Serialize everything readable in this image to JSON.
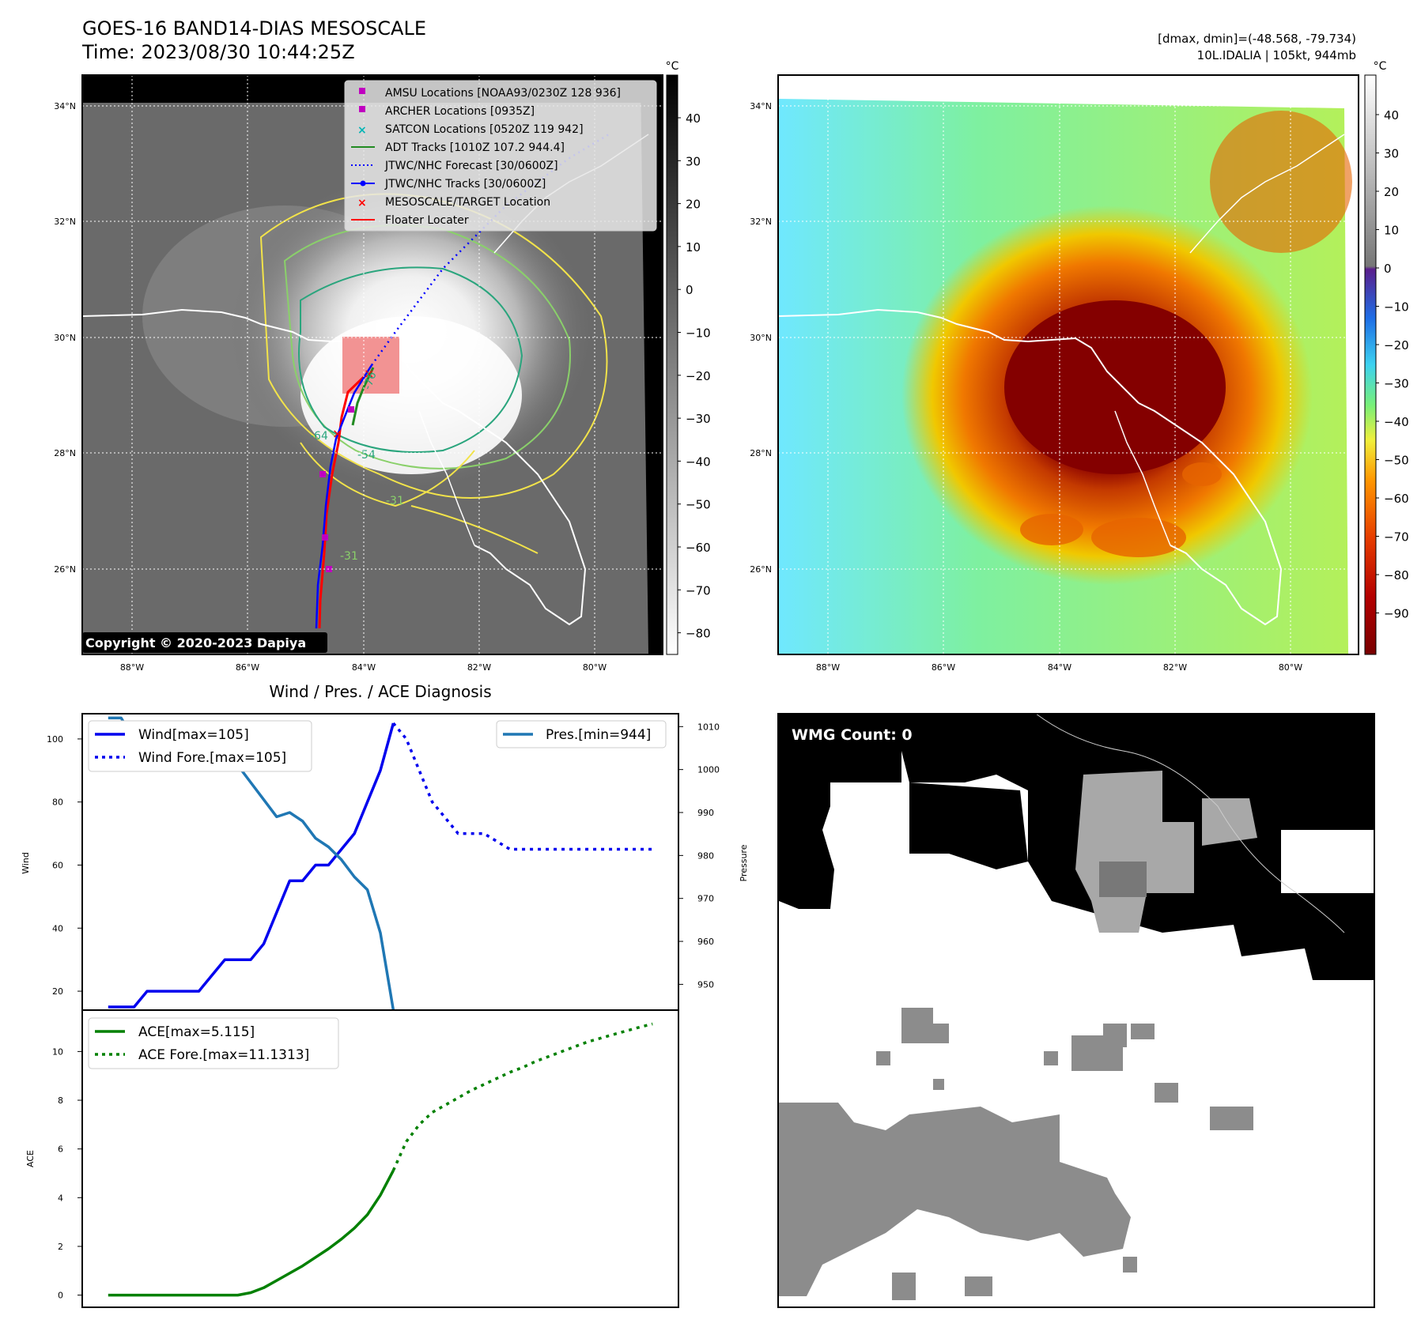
{
  "header": {
    "title_line1": "GOES-16 BAND14-DIAS MESOSCALE",
    "title_line2": "Time: 2023/08/30 10:44:25Z",
    "stats_line1": "[dmax, dmin]=(-48.568, -79.734)",
    "stats_line2": "10L.IDALIA | 105kt, 944mb"
  },
  "colors": {
    "wind": "#0000ee",
    "pressure": "#1f77b4",
    "ace": "#008000",
    "track_red": "#ff0000",
    "adt_green": "#228B22",
    "jtwc_blue": "#0000ff",
    "amsu_magenta": "#c000c0",
    "satcon_cyan": "#00b5b5"
  },
  "map_left": {
    "unit": "°C",
    "colorbar_ticks": [
      "40",
      "30",
      "20",
      "10",
      "0",
      "−10",
      "−20",
      "−30",
      "−40",
      "−50",
      "−60",
      "−70",
      "−80"
    ],
    "lat_labels": [
      "34°N",
      "32°N",
      "30°N",
      "28°N",
      "26°N"
    ],
    "lon_labels": [
      "88°W",
      "86°W",
      "84°W",
      "82°W",
      "80°W"
    ],
    "contour_labels": [
      "-76",
      "-64",
      "-54",
      "-31",
      "-31"
    ],
    "copyright": "Copyright © 2020-2023 Dapiya",
    "legend": [
      {
        "label": "AMSU Locations [NOAA93/0230Z 128 936]",
        "marker": "square-magenta"
      },
      {
        "label": "ARCHER Locations [0935Z]",
        "marker": "square-magenta"
      },
      {
        "label": "SATCON Locations [0520Z 119 942]",
        "marker": "x-cyan"
      },
      {
        "label": "ADT Tracks [1010Z 107.2 944.4]",
        "marker": "line-green"
      },
      {
        "label": "JTWC/NHC Forecast [30/0600Z]",
        "marker": "dotted-blue"
      },
      {
        "label": "JTWC/NHC Tracks [30/0600Z]",
        "marker": "line-dot-blue"
      },
      {
        "label": "MESOSCALE/TARGET Location",
        "marker": "x-red"
      },
      {
        "label": "Floater Locater",
        "marker": "line-red"
      }
    ]
  },
  "map_right": {
    "unit": "°C",
    "colorbar_ticks": [
      "40",
      "30",
      "20",
      "10",
      "0",
      "−10",
      "−20",
      "−30",
      "−40",
      "−50",
      "−60",
      "−70",
      "−80",
      "−90"
    ],
    "lat_labels": [
      "34°N",
      "32°N",
      "30°N",
      "28°N",
      "26°N"
    ],
    "lon_labels": [
      "88°W",
      "86°W",
      "84°W",
      "82°W",
      "80°W"
    ]
  },
  "wmg_panel": {
    "count_label": "WMG Count: 0"
  },
  "chart_data": [
    {
      "type": "line",
      "title": "Wind / Pres. / ACE Diagnosis",
      "ylabel": "Wind",
      "ylabel_right": "Pressure",
      "ylim": [
        14,
        108
      ],
      "ylim_right": [
        944,
        1013
      ],
      "yticks": [
        20,
        40,
        60,
        80,
        100
      ],
      "yticks_right": [
        950,
        960,
        970,
        980,
        990,
        1000,
        1010
      ],
      "x": [
        0,
        1,
        2,
        3,
        4,
        5,
        6,
        7,
        8,
        9,
        10,
        11,
        12,
        13,
        14,
        15,
        16,
        17,
        18,
        19,
        20,
        21,
        22,
        23,
        24,
        25,
        26,
        27,
        28,
        29,
        30,
        31,
        32,
        33,
        34,
        35,
        36,
        37,
        38,
        39,
        40,
        41,
        42
      ],
      "xlim": [
        -2,
        44
      ],
      "legend_left": [
        "Wind[max=105]",
        "Wind Fore.[max=105]"
      ],
      "legend_right": [
        "Pres.[min=944]"
      ],
      "series": [
        {
          "name": "Wind[max=105]",
          "axis": "left",
          "style": "solid",
          "x": [
            0,
            1,
            2,
            3,
            4,
            5,
            6,
            7,
            8,
            9,
            10,
            11,
            12,
            13,
            14,
            15,
            16,
            17,
            18,
            19,
            20,
            21,
            22
          ],
          "values": [
            15,
            15,
            15,
            20,
            20,
            20,
            20,
            20,
            25,
            30,
            30,
            30,
            35,
            45,
            55,
            55,
            60,
            60,
            65,
            70,
            80,
            90,
            105
          ]
        },
        {
          "name": "Wind Fore.[max=105]",
          "axis": "left",
          "style": "dotted",
          "x": [
            22,
            23,
            24,
            25,
            26,
            27,
            28,
            29,
            30,
            31,
            32,
            33,
            34,
            35,
            36,
            37,
            38,
            39,
            40,
            41,
            42
          ],
          "values": [
            105,
            100,
            90,
            80,
            75,
            70,
            70,
            70,
            67.5,
            65,
            65,
            65,
            65,
            65,
            65,
            65,
            65,
            65,
            65,
            65,
            65
          ]
        },
        {
          "name": "Pres.[min=944]",
          "axis": "right",
          "style": "solid",
          "x": [
            0,
            1,
            2,
            3,
            4,
            5,
            6,
            7,
            8,
            9,
            10,
            11,
            12,
            13,
            14,
            15,
            16,
            17,
            18,
            19,
            20,
            21,
            22
          ],
          "values": [
            1012,
            1012,
            1007,
            1006,
            1005,
            1005,
            1005,
            1004,
            1004,
            1001,
            1001,
            997,
            993,
            989,
            990,
            988,
            984,
            982,
            979,
            975,
            972,
            962,
            944
          ]
        }
      ]
    },
    {
      "type": "line",
      "ylabel": "ACE",
      "ylim": [
        -0.5,
        11.7
      ],
      "yticks": [
        0,
        2,
        4,
        6,
        8,
        10
      ],
      "xlim": [
        -2,
        44
      ],
      "legend_left": [
        "ACE[max=5.115]",
        "ACE Fore.[max=11.1313]"
      ],
      "series": [
        {
          "name": "ACE[max=5.115]",
          "style": "solid",
          "x": [
            0,
            1,
            2,
            3,
            4,
            5,
            6,
            7,
            8,
            9,
            10,
            11,
            12,
            13,
            14,
            15,
            16,
            17,
            18,
            19,
            20,
            21,
            22
          ],
          "values": [
            0,
            0,
            0,
            0,
            0,
            0,
            0,
            0,
            0,
            0,
            0,
            0.1,
            0.3,
            0.6,
            0.9,
            1.2,
            1.55,
            1.9,
            2.3,
            2.75,
            3.3,
            4.1,
            5.115
          ]
        },
        {
          "name": "ACE Fore.[max=11.1313]",
          "style": "dotted",
          "x": [
            22,
            23,
            24,
            25,
            26,
            27,
            28,
            29,
            30,
            31,
            32,
            33,
            34,
            35,
            36,
            37,
            38,
            39,
            40,
            41,
            42
          ],
          "values": [
            5.115,
            6.3,
            7.0,
            7.5,
            7.8,
            8.1,
            8.4,
            8.65,
            8.9,
            9.15,
            9.35,
            9.6,
            9.8,
            10.0,
            10.2,
            10.4,
            10.55,
            10.7,
            10.85,
            11.0,
            11.1313
          ]
        }
      ]
    }
  ]
}
